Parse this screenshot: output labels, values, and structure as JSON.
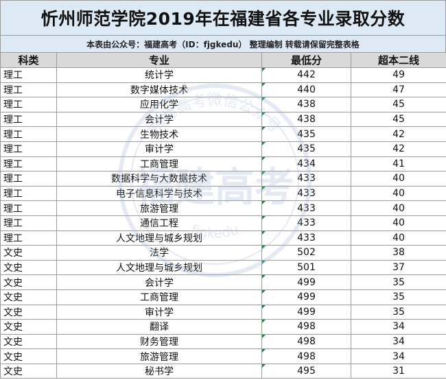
{
  "title": "忻州师范学院2019年在福建省各专业录取分数",
  "subtitle": "本表由公众号：福建高考（ID：fjgkedu） 整理编制 转载请保留完整表格",
  "table": {
    "headers": [
      "科类",
      "专业",
      "最低分",
      "超本二线"
    ],
    "rows": [
      [
        "理工",
        "统计学",
        "442",
        "49"
      ],
      [
        "理工",
        "数字媒体技术",
        "440",
        "47"
      ],
      [
        "理工",
        "应用化学",
        "438",
        "45"
      ],
      [
        "理工",
        "会计学",
        "438",
        "45"
      ],
      [
        "理工",
        "生物技术",
        "435",
        "42"
      ],
      [
        "理工",
        "审计学",
        "435",
        "42"
      ],
      [
        "理工",
        "工商管理",
        "434",
        "41"
      ],
      [
        "理工",
        "数据科学与大数据技术",
        "433",
        "40"
      ],
      [
        "理工",
        "电子信息科学与技术",
        "433",
        "40"
      ],
      [
        "理工",
        "旅游管理",
        "433",
        "40"
      ],
      [
        "理工",
        "通信工程",
        "433",
        "40"
      ],
      [
        "理工",
        "人文地理与城乡规划",
        "433",
        "40"
      ],
      [
        "文史",
        "法学",
        "502",
        "38"
      ],
      [
        "文史",
        "人文地理与城乡规划",
        "501",
        "37"
      ],
      [
        "文史",
        "会计学",
        "499",
        "35"
      ],
      [
        "文史",
        "工商管理",
        "499",
        "35"
      ],
      [
        "文史",
        "审计学",
        "499",
        "35"
      ],
      [
        "文史",
        "翻译",
        "498",
        "34"
      ],
      [
        "文史",
        "财务管理",
        "498",
        "34"
      ],
      [
        "文史",
        "旅游管理",
        "498",
        "34"
      ],
      [
        "文史",
        "秘书学",
        "495",
        "31"
      ]
    ]
  },
  "watermark": {
    "main": "福建高考",
    "arc_top": "福建高考微信公众号",
    "arc_bottom": "fjgkedu",
    "color": "#9fb4d6"
  }
}
